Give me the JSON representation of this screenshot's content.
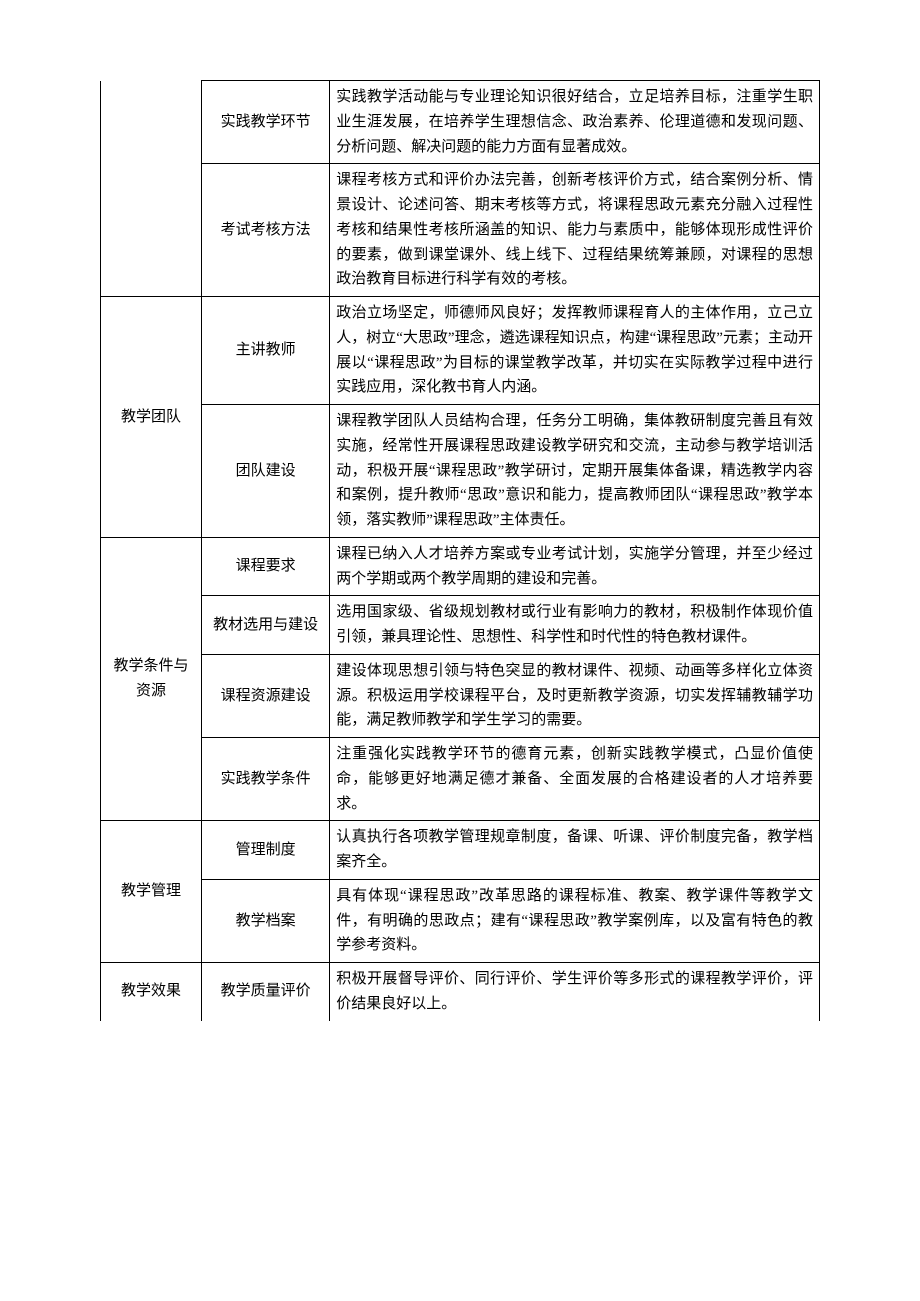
{
  "table": {
    "rows": [
      {
        "cat": "",
        "cat_rowspan": 2,
        "cat_open_top": true,
        "sub": "实践教学环节",
        "desc": "实践教学活动能与专业理论知识很好结合，立足培养目标，注重学生职业生涯发展，在培养学生理想信念、政治素养、伦理道德和发现问题、分析问题、解决问题的能力方面有显著成效。"
      },
      {
        "sub": "考试考核方法",
        "desc": "课程考核方式和评价办法完善，创新考核评价方式，结合案例分析、情景设计、论述问答、期末考核等方式，将课程思政元素充分融入过程性考核和结果性考核所涵盖的知识、能力与素质中，能够体现形成性评价的要素，做到课堂课外、线上线下、过程结果统筹兼顾，对课程的思想政治教育目标进行科学有效的考核。"
      },
      {
        "cat": "教学团队",
        "cat_rowspan": 2,
        "sub": "主讲教师",
        "desc": "政治立场坚定，师德师风良好；发挥教师课程育人的主体作用，立己立人，树立“大思政”理念，遴选课程知识点，构建“课程思政”元素；主动开展以“课程思政”为目标的课堂教学改革，并切实在实际教学过程中进行实践应用，深化教书育人内涵。"
      },
      {
        "sub": "团队建设",
        "desc": "课程教学团队人员结构合理，任务分工明确，集体教研制度完善且有效实施，经常性开展课程思政建设教学研究和交流，主动参与教学培训活动，积极开展“课程思政”教学研讨，定期开展集体备课，精选教学内容和案例，提升教师“思政”意识和能力，提高教师团队“课程思政”教学本领，落实教师”课程思政”主体责任。"
      },
      {
        "cat": "教学条件与资源",
        "cat_rowspan": 4,
        "sub": "课程要求",
        "desc": "课程已纳入人才培养方案或专业考试计划，实施学分管理，并至少经过两个学期或两个教学周期的建设和完善。"
      },
      {
        "sub": "教材选用与建设",
        "desc": "选用国家级、省级规划教材或行业有影响力的教材，积极制作体现价值引领，兼具理论性、思想性、科学性和时代性的特色教材课件。"
      },
      {
        "sub": "课程资源建设",
        "desc": "建设体现思想引领与特色突显的教材课件、视频、动画等多样化立体资源。积极运用学校课程平台，及时更新教学资源，切实发挥辅教辅学功能，满足教师教学和学生学习的需要。"
      },
      {
        "sub": "实践教学条件",
        "desc": "注重强化实践教学环节的德育元素，创新实践教学模式，凸显价值使命，能够更好地满足德才兼备、全面发展的合格建设者的人才培养要求。"
      },
      {
        "cat": "教学管理",
        "cat_rowspan": 2,
        "sub": "管理制度",
        "desc": "认真执行各项教学管理规章制度，备课、听课、评价制度完备，教学档案齐全。"
      },
      {
        "sub": "教学档案",
        "desc": "具有体现“课程思政”改革思路的课程标准、教案、教学课件等教学文件，有明确的思政点；建有“课程思政”教学案例库，以及富有特色的教学参考资料。"
      },
      {
        "cat": "教学效果",
        "cat_rowspan": 1,
        "cat_open_bottom": true,
        "sub": "教学质量评价",
        "desc": "积极开展督导评价、同行评价、学生评价等多形式的课程教学评价，评价结果良好以上。",
        "desc_open_bottom": true,
        "sub_open_bottom": true
      }
    ]
  }
}
